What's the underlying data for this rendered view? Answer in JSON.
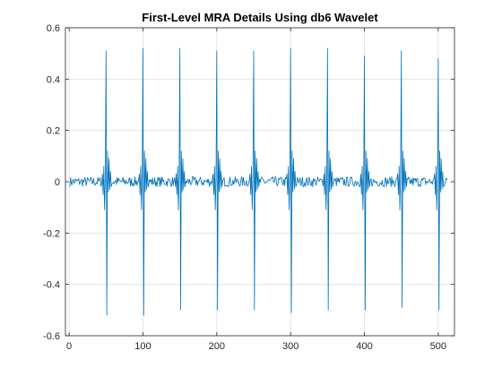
{
  "chart_data": {
    "type": "line",
    "title": "First-Level MRA Details Using db6 Wavelet",
    "xlabel": "",
    "ylabel": "",
    "xlim": [
      -5,
      522
    ],
    "ylim": [
      -0.6,
      0.6
    ],
    "x_ticks": [
      0,
      100,
      200,
      300,
      400,
      500
    ],
    "x_tick_labels": [
      "0",
      "100",
      "200",
      "300",
      "400",
      "500"
    ],
    "y_ticks": [
      -0.6,
      -0.4,
      -0.2,
      0,
      0.2,
      0.4,
      0.6
    ],
    "y_tick_labels": [
      "-0.6",
      "-0.4",
      "-0.2",
      "0",
      "0.2",
      "0.4",
      "0.6"
    ],
    "grid": true,
    "legend": "none",
    "x_range": [
      1,
      512
    ],
    "series": [
      {
        "color": "#0072BD",
        "baseline_noise_amplitude": 0.02,
        "spikes": [
          {
            "x": 50,
            "max": 0.51,
            "min": -0.52
          },
          {
            "x": 100,
            "max": 0.52,
            "min": -0.52
          },
          {
            "x": 150,
            "max": 0.52,
            "min": -0.5
          },
          {
            "x": 200,
            "max": 0.51,
            "min": -0.5
          },
          {
            "x": 250,
            "max": 0.51,
            "min": -0.5
          },
          {
            "x": 300,
            "max": 0.52,
            "min": -0.51
          },
          {
            "x": 350,
            "max": 0.52,
            "min": -0.5
          },
          {
            "x": 400,
            "max": 0.49,
            "min": -0.5
          },
          {
            "x": 450,
            "max": 0.51,
            "min": -0.49
          },
          {
            "x": 500,
            "max": 0.48,
            "min": -0.5
          }
        ]
      }
    ]
  }
}
